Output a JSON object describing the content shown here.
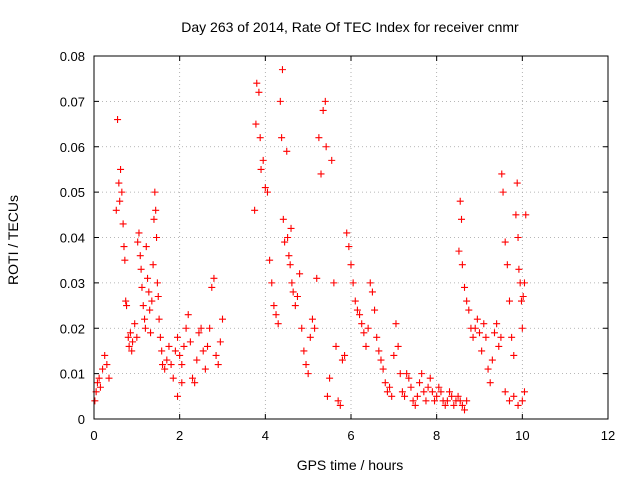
{
  "chart_data": {
    "type": "scatter",
    "title": "Day 263 of 2014, Rate Of TEC Index for receiver cnmr",
    "xlabel": "GPS time / hours",
    "ylabel": "ROTI / TECUs",
    "xlim": [
      0,
      12
    ],
    "ylim": [
      0,
      0.08
    ],
    "xticks": [
      0,
      2,
      4,
      6,
      8,
      10,
      12
    ],
    "xtick_labels": [
      "0",
      "2",
      "4",
      "6",
      "8",
      "10",
      "12"
    ],
    "yticks": [
      0,
      0.01,
      0.02,
      0.03,
      0.04,
      0.05,
      0.06,
      0.07,
      0.08
    ],
    "ytick_labels": [
      "0",
      "0.01",
      "0.02",
      "0.03",
      "0.04",
      "0.05",
      "0.06",
      "0.07",
      "0.08"
    ],
    "grid": true,
    "marker": "+",
    "color": "#ff0000",
    "series": [
      {
        "name": "ROTI",
        "points": [
          [
            0.02,
            0.004
          ],
          [
            0.05,
            0.006
          ],
          [
            0.08,
            0.008
          ],
          [
            0.12,
            0.009
          ],
          [
            0.15,
            0.007
          ],
          [
            0.2,
            0.011
          ],
          [
            0.25,
            0.014
          ],
          [
            0.3,
            0.012
          ],
          [
            0.35,
            0.009
          ],
          [
            0.52,
            0.046
          ],
          [
            0.55,
            0.066
          ],
          [
            0.58,
            0.052
          ],
          [
            0.6,
            0.048
          ],
          [
            0.62,
            0.055
          ],
          [
            0.65,
            0.05
          ],
          [
            0.68,
            0.043
          ],
          [
            0.7,
            0.038
          ],
          [
            0.72,
            0.035
          ],
          [
            0.74,
            0.026
          ],
          [
            0.76,
            0.025
          ],
          [
            0.8,
            0.018
          ],
          [
            0.82,
            0.016
          ],
          [
            0.85,
            0.019
          ],
          [
            0.88,
            0.015
          ],
          [
            0.9,
            0.017
          ],
          [
            0.95,
            0.021
          ],
          [
            1.0,
            0.018
          ],
          [
            1.02,
            0.039
          ],
          [
            1.05,
            0.041
          ],
          [
            1.08,
            0.036
          ],
          [
            1.1,
            0.033
          ],
          [
            1.12,
            0.029
          ],
          [
            1.15,
            0.025
          ],
          [
            1.18,
            0.022
          ],
          [
            1.2,
            0.02
          ],
          [
            1.22,
            0.038
          ],
          [
            1.25,
            0.031
          ],
          [
            1.28,
            0.028
          ],
          [
            1.3,
            0.024
          ],
          [
            1.32,
            0.019
          ],
          [
            1.35,
            0.026
          ],
          [
            1.38,
            0.034
          ],
          [
            1.4,
            0.044
          ],
          [
            1.42,
            0.05
          ],
          [
            1.44,
            0.046
          ],
          [
            1.46,
            0.04
          ],
          [
            1.48,
            0.03
          ],
          [
            1.5,
            0.027
          ],
          [
            1.52,
            0.022
          ],
          [
            1.55,
            0.018
          ],
          [
            1.58,
            0.015
          ],
          [
            1.6,
            0.012
          ],
          [
            1.65,
            0.011
          ],
          [
            1.7,
            0.013
          ],
          [
            1.75,
            0.016
          ],
          [
            1.8,
            0.012
          ],
          [
            1.85,
            0.009
          ],
          [
            1.9,
            0.015
          ],
          [
            1.95,
            0.018
          ],
          [
            2.0,
            0.014
          ],
          [
            2.05,
            0.012
          ],
          [
            2.1,
            0.016
          ],
          [
            2.15,
            0.02
          ],
          [
            2.2,
            0.023
          ],
          [
            2.25,
            0.017
          ],
          [
            2.3,
            0.009
          ],
          [
            2.35,
            0.008
          ],
          [
            2.4,
            0.013
          ],
          [
            2.45,
            0.019
          ],
          [
            2.5,
            0.02
          ],
          [
            2.55,
            0.015
          ],
          [
            2.6,
            0.011
          ],
          [
            2.65,
            0.016
          ],
          [
            2.7,
            0.02
          ],
          [
            2.75,
            0.029
          ],
          [
            2.8,
            0.031
          ],
          [
            2.85,
            0.014
          ],
          [
            2.9,
            0.012
          ],
          [
            2.95,
            0.017
          ],
          [
            3.0,
            0.022
          ],
          [
            2.05,
            0.008
          ],
          [
            1.95,
            0.005
          ],
          [
            3.75,
            0.046
          ],
          [
            3.78,
            0.065
          ],
          [
            3.8,
            0.074
          ],
          [
            3.85,
            0.072
          ],
          [
            3.88,
            0.062
          ],
          [
            3.9,
            0.055
          ],
          [
            3.95,
            0.057
          ],
          [
            4.0,
            0.051
          ],
          [
            4.05,
            0.05
          ],
          [
            4.1,
            0.035
          ],
          [
            4.15,
            0.03
          ],
          [
            4.2,
            0.025
          ],
          [
            4.25,
            0.023
          ],
          [
            4.3,
            0.021
          ],
          [
            4.35,
            0.07
          ],
          [
            4.38,
            0.062
          ],
          [
            4.4,
            0.077
          ],
          [
            4.42,
            0.044
          ],
          [
            4.45,
            0.039
          ],
          [
            4.5,
            0.059
          ],
          [
            4.52,
            0.04
          ],
          [
            4.55,
            0.036
          ],
          [
            4.58,
            0.034
          ],
          [
            4.6,
            0.042
          ],
          [
            4.62,
            0.03
          ],
          [
            4.65,
            0.028
          ],
          [
            4.7,
            0.025
          ],
          [
            4.75,
            0.027
          ],
          [
            4.8,
            0.032
          ],
          [
            4.85,
            0.02
          ],
          [
            4.9,
            0.015
          ],
          [
            4.95,
            0.012
          ],
          [
            5.0,
            0.01
          ],
          [
            5.05,
            0.018
          ],
          [
            5.1,
            0.022
          ],
          [
            5.15,
            0.02
          ],
          [
            5.2,
            0.031
          ],
          [
            5.25,
            0.062
          ],
          [
            5.3,
            0.054
          ],
          [
            5.35,
            0.068
          ],
          [
            5.4,
            0.07
          ],
          [
            5.42,
            0.06
          ],
          [
            5.45,
            0.005
          ],
          [
            5.5,
            0.009
          ],
          [
            5.55,
            0.057
          ],
          [
            5.6,
            0.03
          ],
          [
            5.65,
            0.016
          ],
          [
            5.7,
            0.004
          ],
          [
            5.75,
            0.003
          ],
          [
            5.8,
            0.013
          ],
          [
            5.85,
            0.014
          ],
          [
            5.9,
            0.041
          ],
          [
            5.95,
            0.038
          ],
          [
            6.0,
            0.034
          ],
          [
            6.05,
            0.03
          ],
          [
            6.1,
            0.026
          ],
          [
            6.15,
            0.024
          ],
          [
            6.2,
            0.023
          ],
          [
            6.25,
            0.021
          ],
          [
            6.3,
            0.019
          ],
          [
            6.35,
            0.016
          ],
          [
            6.4,
            0.02
          ],
          [
            6.45,
            0.03
          ],
          [
            6.5,
            0.028
          ],
          [
            6.55,
            0.024
          ],
          [
            6.6,
            0.018
          ],
          [
            6.65,
            0.015
          ],
          [
            6.7,
            0.013
          ],
          [
            6.75,
            0.011
          ],
          [
            6.8,
            0.008
          ],
          [
            6.85,
            0.006
          ],
          [
            6.9,
            0.007
          ],
          [
            6.95,
            0.005
          ],
          [
            7.0,
            0.014
          ],
          [
            7.05,
            0.021
          ],
          [
            7.1,
            0.016
          ],
          [
            7.15,
            0.01
          ],
          [
            7.2,
            0.006
          ],
          [
            7.25,
            0.005
          ],
          [
            7.3,
            0.01
          ],
          [
            7.35,
            0.009
          ],
          [
            7.4,
            0.007
          ],
          [
            7.45,
            0.004
          ],
          [
            7.5,
            0.003
          ],
          [
            7.55,
            0.005
          ],
          [
            7.6,
            0.008
          ],
          [
            7.65,
            0.01
          ],
          [
            7.7,
            0.006
          ],
          [
            7.75,
            0.004
          ],
          [
            7.8,
            0.007
          ],
          [
            7.85,
            0.009
          ],
          [
            7.9,
            0.006
          ],
          [
            7.95,
            0.004
          ],
          [
            8.0,
            0.005
          ],
          [
            8.05,
            0.007
          ],
          [
            8.1,
            0.006
          ],
          [
            8.15,
            0.004
          ],
          [
            8.2,
            0.003
          ],
          [
            8.25,
            0.004
          ],
          [
            8.3,
            0.006
          ],
          [
            8.35,
            0.005
          ],
          [
            8.4,
            0.003
          ],
          [
            8.45,
            0.004
          ],
          [
            8.5,
            0.005
          ],
          [
            8.55,
            0.004
          ],
          [
            8.6,
            0.003
          ],
          [
            8.65,
            0.002
          ],
          [
            8.7,
            0.004
          ],
          [
            8.52,
            0.037
          ],
          [
            8.55,
            0.048
          ],
          [
            8.58,
            0.044
          ],
          [
            8.6,
            0.034
          ],
          [
            8.65,
            0.029
          ],
          [
            8.7,
            0.026
          ],
          [
            8.75,
            0.024
          ],
          [
            8.8,
            0.02
          ],
          [
            8.85,
            0.018
          ],
          [
            8.9,
            0.02
          ],
          [
            8.95,
            0.022
          ],
          [
            9.0,
            0.019
          ],
          [
            9.05,
            0.015
          ],
          [
            9.1,
            0.021
          ],
          [
            9.15,
            0.018
          ],
          [
            9.2,
            0.011
          ],
          [
            9.25,
            0.008
          ],
          [
            9.3,
            0.013
          ],
          [
            9.35,
            0.019
          ],
          [
            9.4,
            0.021
          ],
          [
            9.45,
            0.016
          ],
          [
            9.5,
            0.018
          ],
          [
            9.52,
            0.054
          ],
          [
            9.55,
            0.05
          ],
          [
            9.6,
            0.039
          ],
          [
            9.65,
            0.034
          ],
          [
            9.7,
            0.026
          ],
          [
            9.75,
            0.018
          ],
          [
            9.8,
            0.014
          ],
          [
            9.85,
            0.045
          ],
          [
            9.88,
            0.052
          ],
          [
            9.9,
            0.04
          ],
          [
            9.92,
            0.033
          ],
          [
            9.95,
            0.03
          ],
          [
            9.98,
            0.026
          ],
          [
            10.0,
            0.02
          ],
          [
            10.02,
            0.027
          ],
          [
            10.05,
            0.03
          ],
          [
            10.08,
            0.045
          ],
          [
            9.6,
            0.006
          ],
          [
            9.7,
            0.004
          ],
          [
            9.8,
            0.005
          ],
          [
            9.9,
            0.003
          ],
          [
            10.0,
            0.004
          ],
          [
            10.05,
            0.006
          ]
        ]
      }
    ]
  }
}
